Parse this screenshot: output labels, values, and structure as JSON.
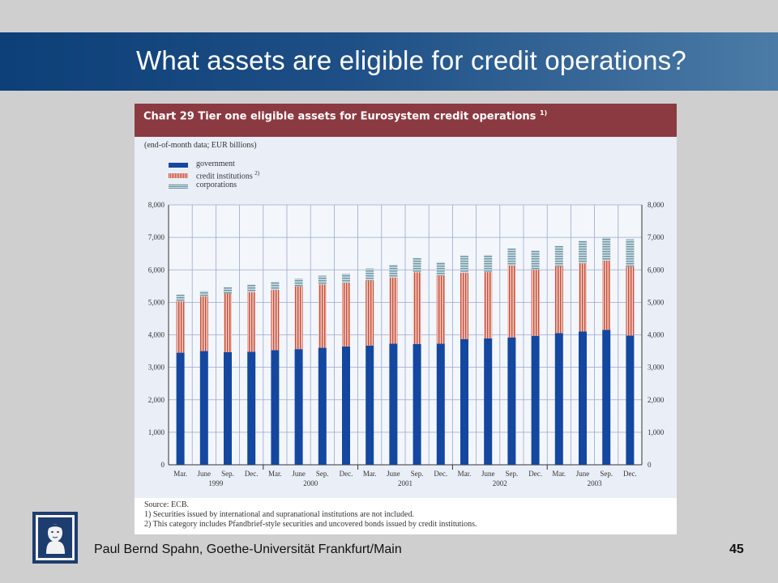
{
  "slide": {
    "title": "What assets are eligible for credit operations?",
    "footer": "Paul Bernd Spahn, Goethe-Universität Frankfurt/Main",
    "page_number": "45",
    "banner_colors": [
      "#0d3f78",
      "#4b7ba6"
    ]
  },
  "chart_data": {
    "type": "bar",
    "stacked": true,
    "title": "Chart 29 Tier one eligible assets for Eurosystem credit operations",
    "title_note": "1)",
    "subtitle": "(end-of-month data; EUR billions)",
    "categories": [
      "Mar.",
      "June",
      "Sep.",
      "Dec.",
      "Mar.",
      "June",
      "Sep.",
      "Dec.",
      "Mar.",
      "June",
      "Sep.",
      "Dec.",
      "Mar.",
      "June",
      "Sep.",
      "Dec.",
      "Mar.",
      "June",
      "Sep.",
      "Dec."
    ],
    "year_labels": [
      "1999",
      "2000",
      "2001",
      "2002",
      "2003"
    ],
    "series": [
      {
        "name": "government",
        "color": "#1447a0",
        "values": [
          3450,
          3500,
          3470,
          3480,
          3530,
          3560,
          3600,
          3640,
          3670,
          3730,
          3720,
          3730,
          3870,
          3890,
          3920,
          3970,
          4050,
          4100,
          4150,
          3980
        ]
      },
      {
        "name": "credit institutions",
        "name_note": "2)",
        "color": "#c94f3d",
        "values": [
          1580,
          1680,
          1800,
          1830,
          1850,
          1930,
          1950,
          1960,
          2000,
          2030,
          2200,
          2090,
          2040,
          2040,
          2210,
          2030,
          2060,
          2100,
          2130,
          2120
        ]
      },
      {
        "name": "corporations",
        "color": "#6f98a6",
        "values": [
          210,
          170,
          200,
          240,
          260,
          240,
          270,
          280,
          370,
          400,
          450,
          420,
          530,
          530,
          530,
          600,
          630,
          700,
          720,
          840
        ]
      }
    ],
    "ylim": [
      0,
      8000
    ],
    "yticks": [
      "0",
      "1,000",
      "2,000",
      "3,000",
      "4,000",
      "5,000",
      "6,000",
      "7,000",
      "8,000"
    ],
    "grid": true,
    "legend_position": "top-left",
    "source": "Source: ECB.",
    "notes": [
      "1) Securities issued by international and supranational institutions are not included.",
      "2) This category includes Pfandbrief-style securities and uncovered bonds issued by credit institutions."
    ]
  }
}
